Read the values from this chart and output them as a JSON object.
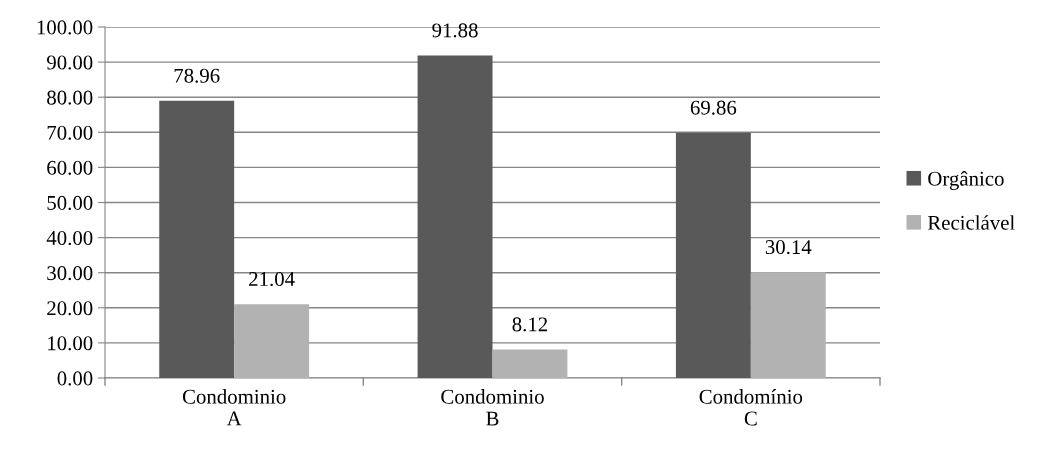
{
  "chart_data": {
    "type": "bar",
    "categories": [
      "Condominio\nA",
      "Condominio\nB",
      "Condomínio\nC"
    ],
    "series": [
      {
        "name": "Orgânico",
        "color": "#595959",
        "values": [
          78.96,
          91.88,
          69.86
        ]
      },
      {
        "name": "Reciclável",
        "color": "#b2b2b2",
        "values": [
          21.04,
          8.12,
          30.14
        ]
      }
    ],
    "ylim": [
      0,
      100
    ],
    "yticks": [
      {
        "value": 0,
        "label": "0.00"
      },
      {
        "value": 10,
        "label": "10.00"
      },
      {
        "value": 20,
        "label": "20.00"
      },
      {
        "value": 30,
        "label": "30.00"
      },
      {
        "value": 40,
        "label": "40.00"
      },
      {
        "value": 50,
        "label": "50.00"
      },
      {
        "value": 60,
        "label": "60.00"
      },
      {
        "value": 70,
        "label": "70.00"
      },
      {
        "value": 80,
        "label": "80.00"
      },
      {
        "value": 90,
        "label": "90.00"
      },
      {
        "value": 100,
        "label": "100.00"
      }
    ],
    "grid": "y",
    "legend": "right",
    "data_labels": true
  }
}
